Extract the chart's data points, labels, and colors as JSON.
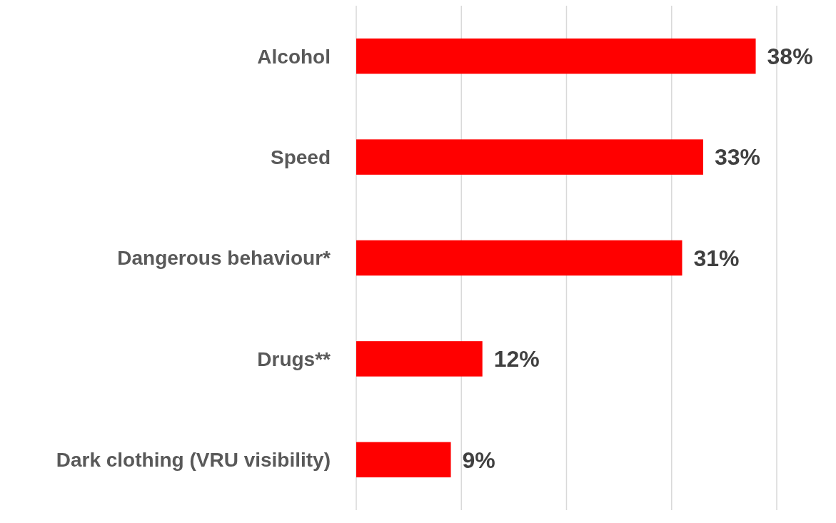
{
  "chart_data": {
    "type": "bar",
    "orientation": "horizontal",
    "categories": [
      "Alcohol",
      "Speed",
      "Dangerous behaviour*",
      "Drugs**",
      "Dark clothing (VRU visibility)"
    ],
    "values": [
      38,
      33,
      31,
      12,
      9
    ],
    "color": "#ff0000",
    "value_labels": [
      "38%",
      "33%",
      "31%",
      "12%",
      "9%"
    ],
    "xlim": [
      0,
      40
    ],
    "xticks": [
      {
        "value": 0,
        "label": null
      },
      {
        "value": 10,
        "label": null
      },
      {
        "value": 20,
        "label": null
      },
      {
        "value": 30,
        "label": null
      },
      {
        "value": 40,
        "label": null
      }
    ],
    "grid": "x",
    "tick_labels": "y"
  }
}
